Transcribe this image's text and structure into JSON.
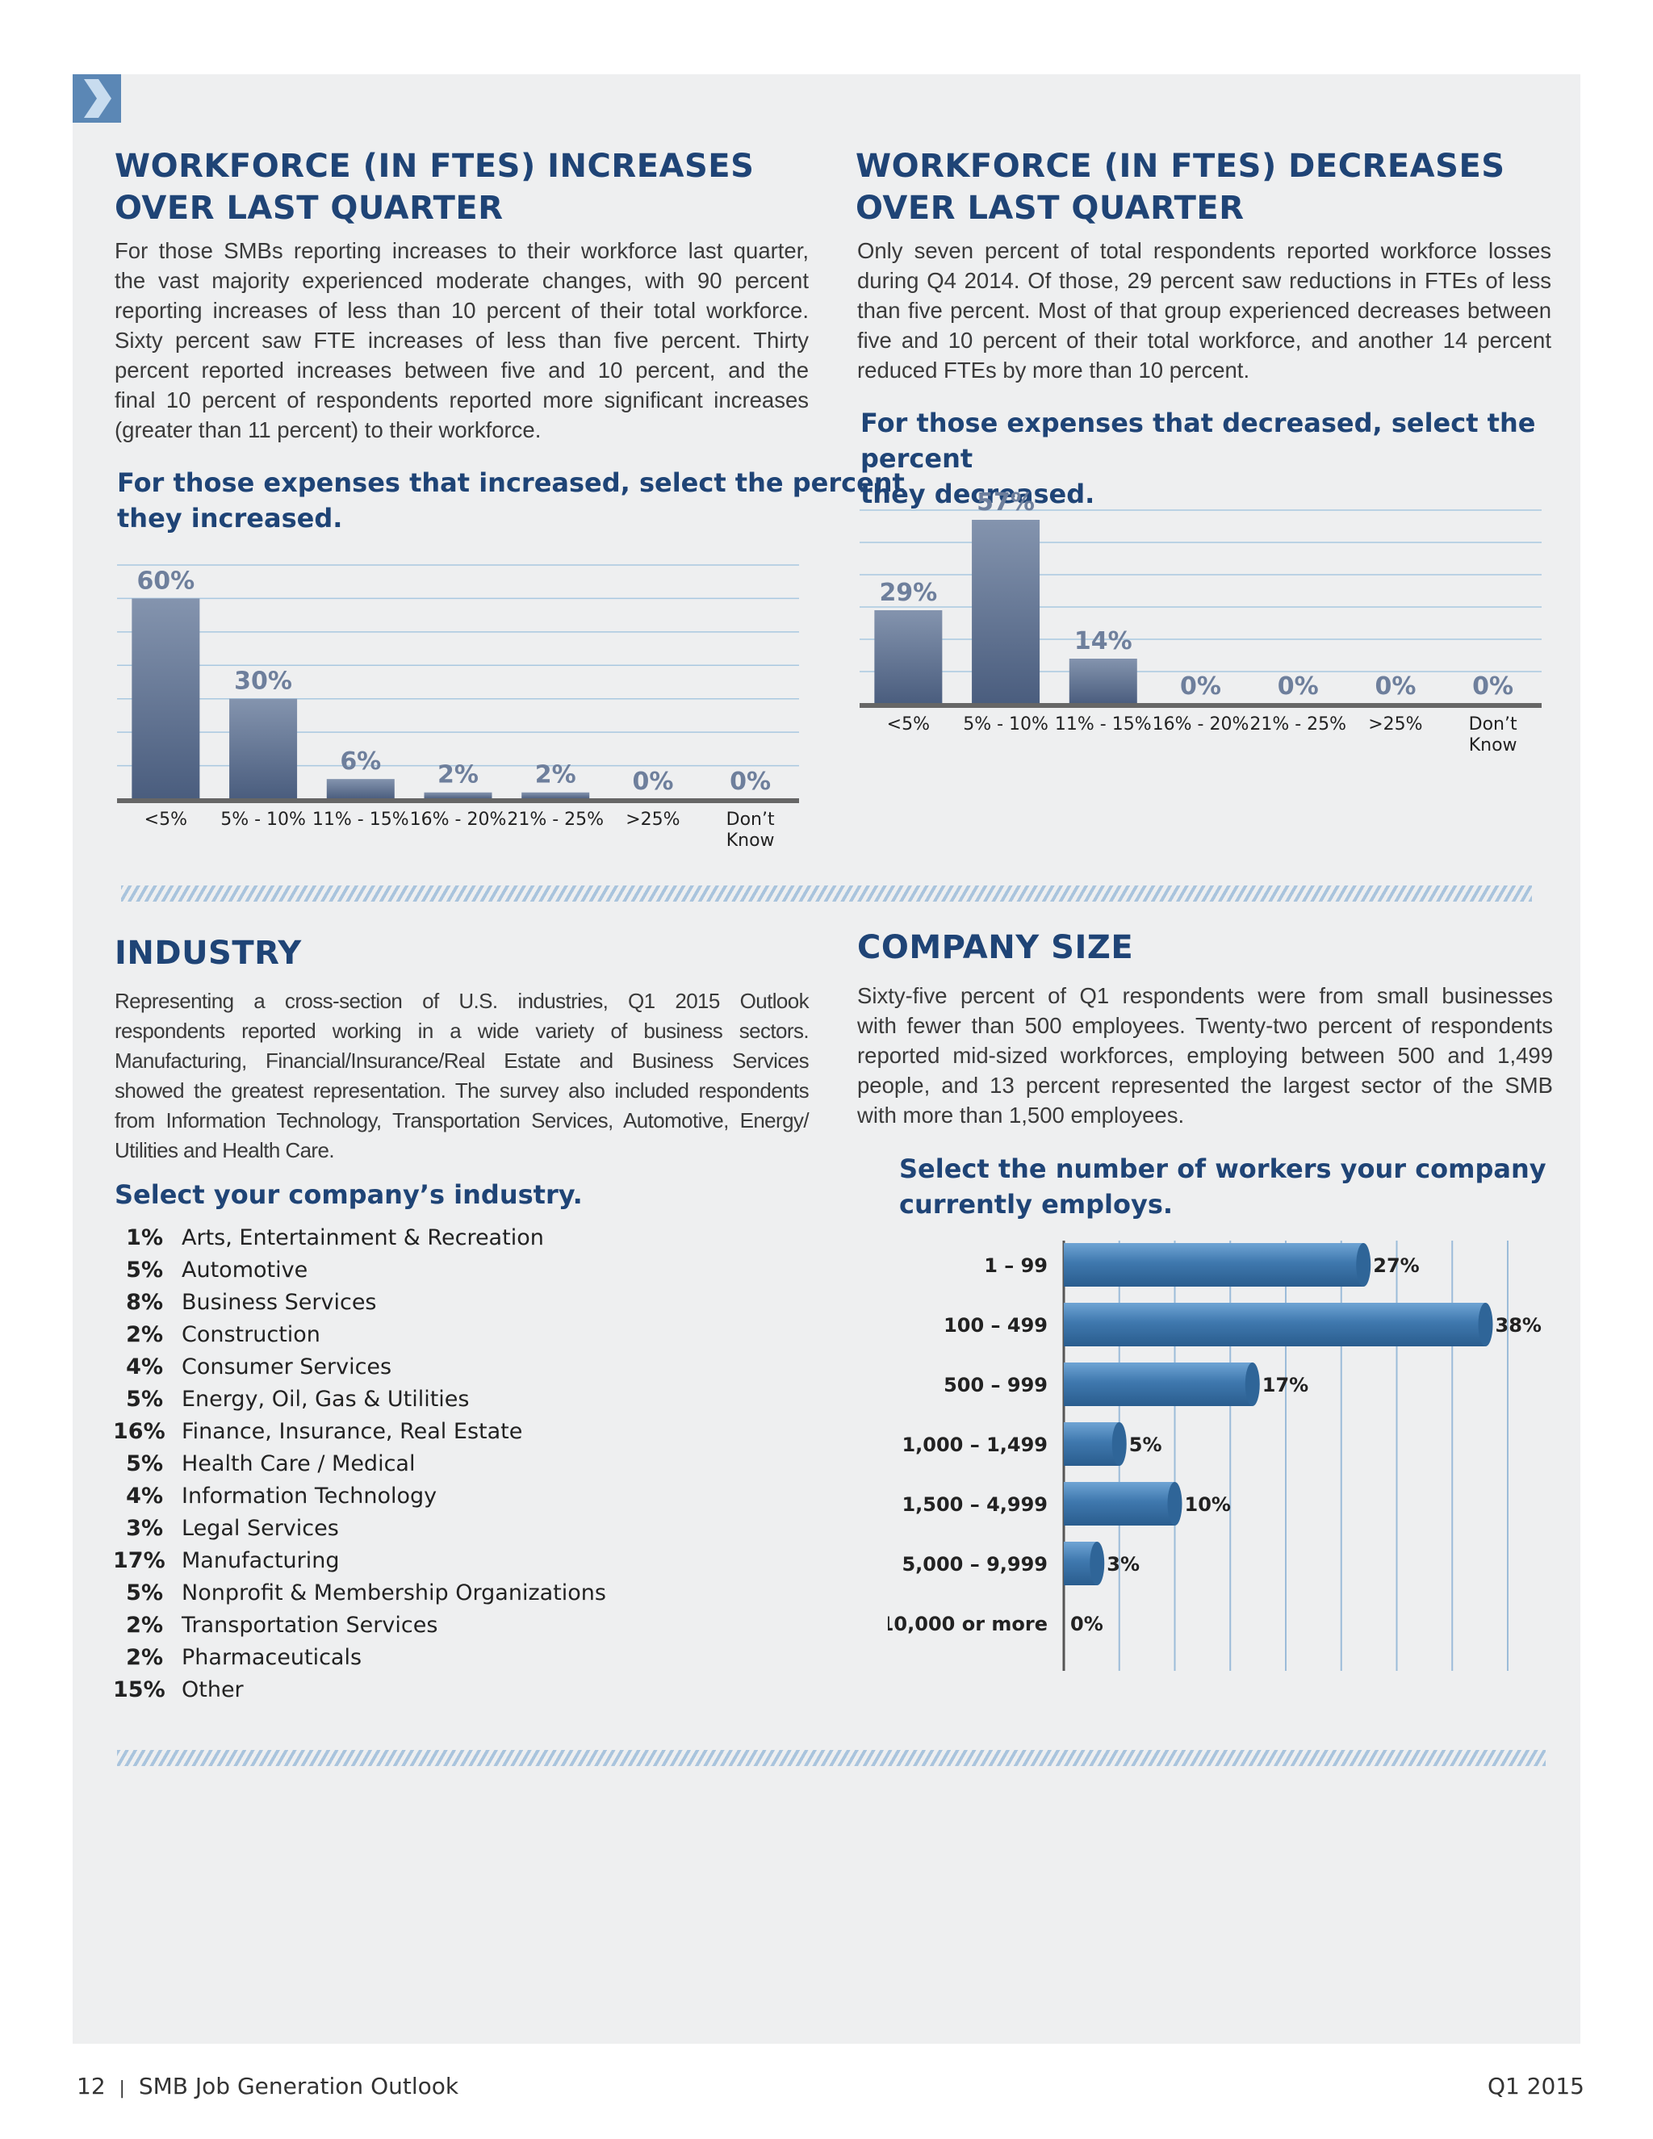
{
  "left_top": {
    "title_line1": "WORKFORCE (IN FTES) INCREASES",
    "title_line2": "OVER LAST QUARTER",
    "para_lines": [
      "For those SMBs reporting increases to their workforce last quarter,",
      "the vast majority experienced moderate changes, with 90 percent",
      "reporting increases of less than 10 percent of their total workforce.",
      "Sixty percent saw FTE increases of less than five percent. Thirty",
      "percent reported increases between five and 10 percent, and the",
      "final 10 percent of respondents reported more significant increases",
      "(greater than 11 percent) to their workforce."
    ],
    "question_line1": "For those expenses that increased, select the percent",
    "question_line2": "they increased."
  },
  "right_top": {
    "title_line1": "WORKFORCE (IN FTES) DECREASES",
    "title_line2": "OVER LAST QUARTER",
    "para_lines": [
      "Only seven percent of total respondents reported workforce losses",
      "during Q4 2014. Of those, 29 percent saw reductions in FTEs of less",
      "than five percent. Most of that group experienced decreases between",
      "five and 10 percent of their total workforce, and another 14 percent",
      "reduced FTEs by more than 10 percent."
    ],
    "question_line1": "For those expenses that decreased, select the percent",
    "question_line2": "they decreased."
  },
  "industry": {
    "title": "INDUSTRY",
    "para_lines": [
      "Representing a cross-section of U.S. industries, Q1 2015 Outlook",
      "respondents reported working in a wide variety of business sectors.",
      "Manufacturing, Financial/Insurance/Real Estate and Business Services",
      "showed the greatest representation. The survey also included respondents",
      "from Information Technology, Transportation Services, Automotive, Energy/",
      "Utilities and Health Care."
    ],
    "question": "Select your company’s industry.",
    "items": [
      {
        "pct": "1%",
        "name": "Arts, Entertainment & Recreation"
      },
      {
        "pct": "5%",
        "name": "Automotive"
      },
      {
        "pct": "8%",
        "name": "Business Services"
      },
      {
        "pct": "2%",
        "name": "Construction"
      },
      {
        "pct": "4%",
        "name": "Consumer Services"
      },
      {
        "pct": "5%",
        "name": "Energy, Oil, Gas & Utilities"
      },
      {
        "pct": "16%",
        "name": "Finance, Insurance, Real Estate"
      },
      {
        "pct": "5%",
        "name": "Health Care / Medical"
      },
      {
        "pct": "4%",
        "name": "Information Technology"
      },
      {
        "pct": "3%",
        "name": "Legal Services"
      },
      {
        "pct": "17%",
        "name": "Manufacturing"
      },
      {
        "pct": "5%",
        "name": "Nonprofit & Membership Organizations"
      },
      {
        "pct": "2%",
        "name": "Transportation Services"
      },
      {
        "pct": "2%",
        "name": "Pharmaceuticals"
      },
      {
        "pct": "15%",
        "name": "Other"
      }
    ]
  },
  "company_size": {
    "title": "COMPANY SIZE",
    "para_lines": [
      "Sixty-five percent of Q1 respondents were from small businesses",
      "with fewer than 500 employees. Twenty-two percent of respondents",
      "reported mid-sized workforces, employing between 500 and 1,499",
      "people, and 13 percent represented the largest sector of the SMB",
      "with more than 1,500 employees."
    ],
    "question_line1": "Select the number of workers your company",
    "question_line2": "currently employs."
  },
  "footer": {
    "page_number": "12",
    "separator": "|",
    "publication": "SMB Job Generation Outlook",
    "issue": "Q1 2015"
  },
  "colors": {
    "title_blue": "#1f4476",
    "bar_dark": "#4a5d7e",
    "bar_light": "#8494ae",
    "hbar_blue": "#3f78ae",
    "panel_bg": "#eeeff0"
  },
  "chart_data": [
    {
      "type": "bar",
      "categories": [
        "<5%",
        "5% - 10%",
        "11% - 15%",
        "16% - 20%",
        "21% - 25%",
        ">25%",
        "Don’t Know"
      ],
      "values": [
        60,
        30,
        6,
        2,
        2,
        0,
        0
      ],
      "value_labels": [
        "60%",
        "30%",
        "6%",
        "2%",
        "2%",
        "0%",
        "0%"
      ],
      "ylim": [
        0,
        70
      ],
      "grid": true
    },
    {
      "type": "bar",
      "categories": [
        "<5%",
        "5% - 10%",
        "11% - 15%",
        "16% - 20%",
        "21% - 25%",
        ">25%",
        "Don’t Know"
      ],
      "values": [
        29,
        57,
        14,
        0,
        0,
        0,
        0
      ],
      "value_labels": [
        "29%",
        "57%",
        "14%",
        "0%",
        "0%",
        "0%",
        "0%"
      ],
      "ylim": [
        0,
        60
      ],
      "grid": true
    },
    {
      "type": "bar",
      "orientation": "horizontal",
      "categories": [
        "1 – 99",
        "100 –  499",
        "500 – 999",
        "1,000 – 1,499",
        "1,500 – 4,999",
        "5,000 – 9,999",
        "10,000 or more"
      ],
      "values": [
        27,
        38,
        17,
        5,
        10,
        3,
        0
      ],
      "value_labels": [
        "27%",
        "38%",
        "17%",
        "5%",
        "10%",
        "3%",
        "0%"
      ],
      "xlim": [
        0,
        40
      ],
      "grid": true
    }
  ]
}
